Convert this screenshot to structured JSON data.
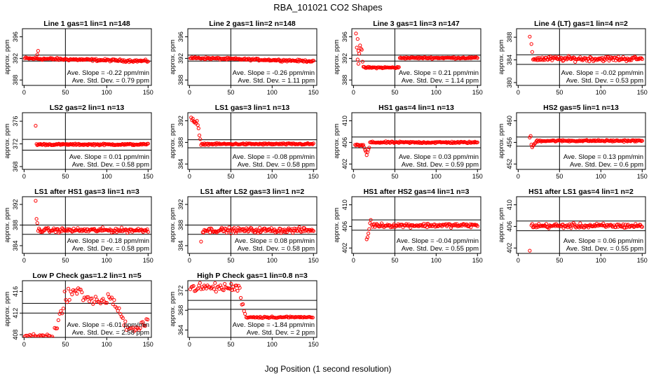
{
  "figure": {
    "title": "RBA_101021  CO2 Shapes",
    "xlabel": "Jog Position (1 second resolution)"
  },
  "colors": {
    "points": "#ff0000",
    "frame": "#000000"
  },
  "chart_data": [
    {
      "type": "scatter",
      "title": "Line 1 gas=1 lin=1 n=148",
      "ylabel": "approx. ppm",
      "xlim": [
        -2,
        154
      ],
      "ylim": [
        387,
        397.5
      ],
      "xticks": [
        0,
        50,
        100,
        150
      ],
      "yticks": [
        388,
        392,
        396
      ],
      "hlines": [
        392.6,
        391.5
      ],
      "vline": 50,
      "slope": "Ave. Slope =  -0.22  ppm/min",
      "std": "Ave. Std. Dev. =  0.79  ppm",
      "shape": "flat",
      "start": 1,
      "end": 150,
      "level": 392.0,
      "drift": -0.5,
      "noise": 0.18,
      "bumps": [
        [
          17,
          393.4
        ],
        [
          16,
          392.7
        ]
      ]
    },
    {
      "type": "scatter",
      "title": "Line 2 gas=1 lin=2 n=148",
      "ylabel": "approx. ppm",
      "xlim": [
        -2,
        154
      ],
      "ylim": [
        387,
        397.5
      ],
      "xticks": [
        0,
        50,
        100,
        150
      ],
      "yticks": [
        388,
        392,
        396
      ],
      "hlines": [
        392.6,
        391.5
      ],
      "vline": 50,
      "slope": "Ave. Slope =  -0.26  ppm/min",
      "std": "Ave. Std. Dev. =  1.11  ppm",
      "shape": "flat",
      "start": 1,
      "end": 150,
      "level": 392.1,
      "drift": -0.6,
      "noise": 0.15,
      "bumps": []
    },
    {
      "type": "scatter",
      "title": "Line 3 gas=1 lin=3 n=147",
      "ylabel": "approx. ppm",
      "xlim": [
        -2,
        154
      ],
      "ylim": [
        387,
        397.5
      ],
      "xticks": [
        0,
        50,
        100,
        150
      ],
      "yticks": [
        388,
        392,
        396
      ],
      "hlines": [
        392.6,
        391.5
      ],
      "vline": 50,
      "slope": "Ave. Slope =  0.21  ppm/min",
      "std": "Ave. Std. Dev. =  1.14  ppm",
      "shape": "line3",
      "start": 3,
      "end": 150,
      "bumps": [
        [
          3,
          396.6
        ],
        [
          5,
          395.6
        ],
        [
          4,
          394.0
        ],
        [
          6,
          393.4
        ],
        [
          8,
          394.4
        ],
        [
          7,
          392.9
        ],
        [
          10,
          393.6
        ],
        [
          9,
          393.8
        ],
        [
          5,
          391.8
        ],
        [
          11,
          391.4
        ],
        [
          6,
          391.0
        ]
      ]
    },
    {
      "type": "scatter",
      "title": "Line 4 (LT) gas=1 lin=4 n=2",
      "ylabel": "approx. ppm",
      "xlim": [
        -2,
        154
      ],
      "ylim": [
        379.5,
        389.5
      ],
      "xticks": [
        0,
        50,
        100,
        150
      ],
      "yticks": [
        380,
        384,
        388
      ],
      "hlines": [
        384.9,
        383.2
      ],
      "vline": 50,
      "slope": "Ave. Slope =  -0.02  ppm/min",
      "std": "Ave. Std. Dev. =  0.53  ppm",
      "shape": "flat",
      "start": 18,
      "end": 150,
      "level": 384.2,
      "drift": 0.0,
      "noise": 0.35,
      "bumps": [
        [
          14,
          388.1
        ],
        [
          16,
          386.8
        ],
        [
          17,
          385.4
        ]
      ]
    },
    {
      "type": "scatter",
      "title": "LS2 gas=2 lin=1 n=13",
      "ylabel": "approx. ppm",
      "xlim": [
        -2,
        154
      ],
      "ylim": [
        367.5,
        377.5
      ],
      "xticks": [
        0,
        50,
        100,
        150
      ],
      "yticks": [
        368,
        372,
        376
      ],
      "hlines": [
        372.8,
        370.9
      ],
      "vline": 50,
      "slope": "Ave. Slope =  0.01  ppm/min",
      "std": "Ave. Std. Dev. =  0.58  ppm",
      "shape": "flat",
      "start": 15,
      "end": 150,
      "level": 371.9,
      "drift": 0.0,
      "noise": 0.12,
      "bumps": [
        [
          14,
          375.2
        ]
      ]
    },
    {
      "type": "scatter",
      "title": "LS1 gas=3 lin=1 n=13",
      "ylabel": "approx. ppm",
      "xlim": [
        -2,
        154
      ],
      "ylim": [
        383,
        393.5
      ],
      "xticks": [
        0,
        50,
        100,
        150
      ],
      "yticks": [
        384,
        388,
        392
      ],
      "hlines": [
        388.5,
        387.0
      ],
      "vline": 50,
      "slope": "Ave. Slope =  -0.08  ppm/min",
      "std": "Ave. Std. Dev. =  0.58  ppm",
      "shape": "ls1",
      "start": 2,
      "end": 150,
      "level": 387.7,
      "drift": 0.0,
      "noise": 0.12,
      "bumps": []
    },
    {
      "type": "scatter",
      "title": "HS1 gas=4 lin=1 n=13",
      "ylabel": "approx. ppm",
      "xlim": [
        -2,
        154
      ],
      "ylim": [
        401,
        411.5
      ],
      "xticks": [
        0,
        50,
        100,
        150
      ],
      "yticks": [
        402,
        406,
        410
      ],
      "hlines": [
        407.0,
        405.0
      ],
      "vline": 50,
      "slope": "Ave. Slope =  0.03  ppm/min",
      "std": "Ave. Std. Dev. =  0.59  ppm",
      "shape": "hs1",
      "start": 2,
      "end": 150,
      "level": 406.0,
      "drift": 0.0,
      "noise": 0.13,
      "bumps": []
    },
    {
      "type": "scatter",
      "title": "HS2 gas=5 lin=1 n=13",
      "ylabel": "approx. ppm",
      "xlim": [
        -2,
        154
      ],
      "ylim": [
        451,
        461.5
      ],
      "xticks": [
        0,
        50,
        100,
        150
      ],
      "yticks": [
        452,
        456,
        460
      ],
      "hlines": [
        457.0,
        455.3
      ],
      "vline": 50,
      "slope": "Ave. Slope =  0.13  ppm/min",
      "std": "Ave. Std. Dev. =  0.6  ppm",
      "shape": "hs2",
      "start": 14,
      "end": 150,
      "level": 456.3,
      "drift": 0.0,
      "noise": 0.13,
      "bumps": []
    },
    {
      "type": "scatter",
      "title": "LS1 after HS1 gas=3 lin=1 n=3",
      "ylabel": "approx. ppm",
      "xlim": [
        -2,
        154
      ],
      "ylim": [
        382.5,
        393.5
      ],
      "xticks": [
        0,
        50,
        100,
        150
      ],
      "yticks": [
        384,
        388,
        392
      ],
      "hlines": [
        388.0,
        386.2
      ],
      "vline": 50,
      "slope": "Ave. Slope =  -0.18  ppm/min",
      "std": "Ave. Std. Dev. =  0.58  ppm",
      "shape": "flat",
      "start": 17,
      "end": 150,
      "level": 387.0,
      "drift": 0.0,
      "noise": 0.35,
      "bumps": [
        [
          14,
          392.7
        ],
        [
          15,
          389.2
        ],
        [
          16,
          388.4
        ]
      ]
    },
    {
      "type": "scatter",
      "title": "LS1 after LS2 gas=3 lin=1 n=2",
      "ylabel": "approx. ppm",
      "xlim": [
        -2,
        154
      ],
      "ylim": [
        382.5,
        393.5
      ],
      "xticks": [
        0,
        50,
        100,
        150
      ],
      "yticks": [
        384,
        388,
        392
      ],
      "hlines": [
        388.0,
        386.2
      ],
      "vline": 50,
      "slope": "Ave. Slope =  0.08  ppm/min",
      "std": "Ave. Std. Dev. =  0.58  ppm",
      "shape": "flat",
      "start": 16,
      "end": 150,
      "level": 387.0,
      "drift": 0.0,
      "noise": 0.4,
      "bumps": [
        [
          14,
          384.8
        ]
      ]
    },
    {
      "type": "scatter",
      "title": "HS1 after HS2 gas=4 lin=1 n=3",
      "ylabel": "approx. ppm",
      "xlim": [
        -2,
        154
      ],
      "ylim": [
        401,
        411.5
      ],
      "xticks": [
        0,
        50,
        100,
        150
      ],
      "yticks": [
        402,
        406,
        410
      ],
      "hlines": [
        407.2,
        405.3
      ],
      "vline": 50,
      "slope": "Ave. Slope =  -0.04  ppm/min",
      "std": "Ave. Std. Dev. =  0.55  ppm",
      "shape": "flat",
      "start": 22,
      "end": 150,
      "level": 406.2,
      "drift": 0.0,
      "noise": 0.3,
      "bumps": [
        [
          16,
          403.6
        ],
        [
          17,
          404.0
        ],
        [
          18,
          404.7
        ],
        [
          19,
          405.5
        ],
        [
          20,
          406.6
        ],
        [
          21,
          407.2
        ]
      ]
    },
    {
      "type": "scatter",
      "title": "HS1 after LS1 gas=4 lin=1 n=2",
      "ylabel": "approx. ppm",
      "xlim": [
        -2,
        154
      ],
      "ylim": [
        401,
        411.5
      ],
      "xticks": [
        0,
        50,
        100,
        150
      ],
      "yticks": [
        402,
        406,
        410
      ],
      "hlines": [
        407.0,
        405.2
      ],
      "vline": 50,
      "slope": "Ave. Slope =  0.06  ppm/min",
      "std": "Ave. Std. Dev. =  0.55  ppm",
      "shape": "flat",
      "start": 16,
      "end": 150,
      "level": 406.1,
      "drift": 0.0,
      "noise": 0.35,
      "bumps": [
        [
          14,
          401.5
        ]
      ]
    },
    {
      "type": "scatter",
      "title": "Low P Check gas=1.2 lin=1 n=5",
      "ylabel": "approx. ppm",
      "xlim": [
        -2,
        154
      ],
      "ylim": [
        407.5,
        418
      ],
      "xticks": [
        0,
        50,
        100,
        150
      ],
      "yticks": [
        408,
        412,
        416
      ],
      "hlines": [
        413.8,
        412.0
      ],
      "vline": 50,
      "slope": "Ave. Slope =  -6.01  ppm/min",
      "std": "Ave. Std. Dev. =  2.58  ppm",
      "shape": "lowp",
      "start": 1,
      "end": 150,
      "bumps": []
    },
    {
      "type": "scatter",
      "title": "High P Check gas=1 lin=0.8 n=3",
      "ylabel": "approx. ppm",
      "xlim": [
        -2,
        154
      ],
      "ylim": [
        362.5,
        374
      ],
      "xticks": [
        0,
        50,
        100,
        150
      ],
      "yticks": [
        364,
        368,
        372
      ],
      "hlines": [
        370.0,
        368.2
      ],
      "vline": 50,
      "slope": "Ave. Slope =  -1.84  ppm/min",
      "std": "Ave. Std. Dev. =  2  ppm",
      "shape": "highp",
      "start": 1,
      "end": 150,
      "bumps": []
    }
  ]
}
